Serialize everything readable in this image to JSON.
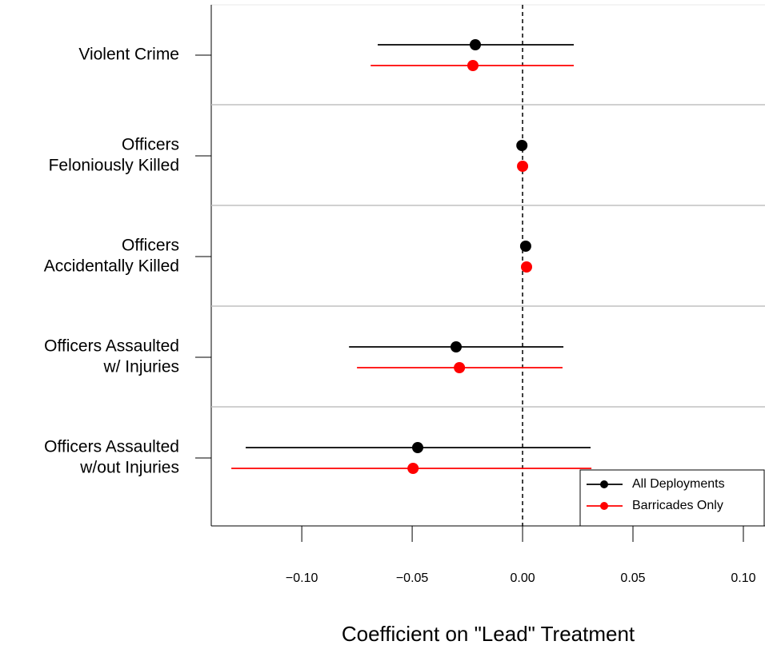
{
  "chart_data": {
    "type": "coefplot",
    "xlabel": "Coefficient on \"Lead\" Treatment",
    "categories": [
      [
        "Violent Crime"
      ],
      [
        "Officers",
        "Feloniously Killed"
      ],
      [
        "Officers",
        "Accidentally Killed"
      ],
      [
        "Officers Assaulted",
        "w/ Injuries"
      ],
      [
        "Officers Assaulted",
        "w/out Injuries"
      ]
    ],
    "series": [
      {
        "name": "All Deployments",
        "color": "#000000",
        "values": [
          -0.0214,
          -0.0003,
          0.0014,
          -0.0301,
          -0.0475
        ],
        "ci_low": [
          -0.0656,
          -0.0003,
          0.0014,
          -0.0786,
          -0.1254
        ],
        "ci_high": [
          0.0232,
          -0.0003,
          0.0014,
          0.0185,
          0.0308
        ]
      },
      {
        "name": "Barricades Only",
        "color": "#ff0000",
        "values": [
          -0.0225,
          0.0,
          0.0018,
          -0.0286,
          -0.0496
        ],
        "ci_low": [
          -0.0688,
          0.0,
          0.0018,
          -0.075,
          -0.1319
        ],
        "ci_high": [
          0.0232,
          0.0,
          0.0018,
          0.0181,
          0.0312
        ]
      }
    ],
    "xlim": [
      -0.141,
      0.1098
    ],
    "xticks": [
      {
        "value": -0.1,
        "label": "−0.10"
      },
      {
        "value": -0.05,
        "label": "−0.05"
      },
      {
        "value": 0,
        "label": "0.00"
      },
      {
        "value": 0.05,
        "label": "0.05"
      },
      {
        "value": 0.1,
        "label": "0.10"
      }
    ],
    "vline": 0,
    "legend": "bottom-right"
  }
}
